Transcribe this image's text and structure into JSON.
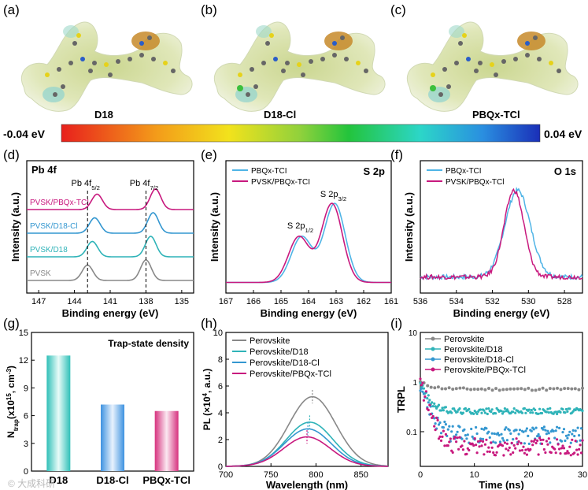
{
  "panel_letters": [
    "(a)",
    "(b)",
    "(c)",
    "(d)",
    "(e)",
    "(f)",
    "(g)",
    "(h)",
    "(i)"
  ],
  "molecules": [
    "D18",
    "D18-Cl",
    "PBQx-TCl"
  ],
  "colorbar": {
    "min_label": "-0.04 eV",
    "max_label": "0.04 eV",
    "colors": [
      "#e8201c",
      "#f39c1a",
      "#f2e21c",
      "#8fd13c",
      "#23c43c",
      "#2cd6c8",
      "#2a8fe0",
      "#1a2fb8"
    ]
  },
  "watermark": "© 大成科研",
  "colors": {
    "magenta": "#c8197e",
    "blue": "#3497d0",
    "teal": "#2fb3b8",
    "gray": "#888888",
    "lightblue": "#4fb4e6"
  },
  "chart_data": [
    {
      "panel": "d",
      "type": "line",
      "title": "Pb 4f",
      "xlabel": "Binding energy (eV)",
      "ylabel": "Intensity (a.u.)",
      "xlim": [
        148,
        134
      ],
      "xticks": [
        147,
        144,
        141,
        138,
        135
      ],
      "peak_labels": [
        {
          "text": "Pb 4f",
          "sub": "5/2",
          "x": 142.8
        },
        {
          "text": "Pb 4f",
          "sub": "7/2",
          "x": 137.9
        }
      ],
      "dashed_lines": [
        142.9,
        138.0
      ],
      "series": [
        {
          "name": "PVSK/PBQx-TCI",
          "peaks": [
            142.1,
            137.2
          ]
        },
        {
          "name": "PVSK/D18-Cl",
          "peaks": [
            142.3,
            137.4
          ]
        },
        {
          "name": "PVSK/D18",
          "peaks": [
            142.5,
            137.6
          ]
        },
        {
          "name": "PVSK",
          "peaks": [
            142.9,
            138.0
          ]
        }
      ]
    },
    {
      "panel": "e",
      "type": "line",
      "title": "S 2p",
      "xlabel": "Binding energy (eV)",
      "ylabel": "Intensity (a.u.)",
      "xlim": [
        167,
        161
      ],
      "xticks": [
        167,
        166,
        165,
        164,
        163,
        162,
        161
      ],
      "peak_labels": [
        {
          "text": "S 2p",
          "sub": "1/2",
          "x": 164.3
        },
        {
          "text": "S 2p",
          "sub": "3/2",
          "x": 163.1
        }
      ],
      "series": [
        {
          "name": "PBQx-TCI",
          "peaks": [
            164.25,
            163.05
          ]
        },
        {
          "name": "PVSK/PBQx-TCI",
          "peaks": [
            164.35,
            163.15
          ]
        }
      ]
    },
    {
      "panel": "f",
      "type": "line",
      "title": "O 1s",
      "xlabel": "Binding energy (eV)",
      "ylabel": "Intensity (a.u.)",
      "xlim": [
        536,
        527
      ],
      "xticks": [
        536,
        534,
        532,
        530,
        528
      ],
      "series": [
        {
          "name": "PBQx-TCI",
          "center": 530.6
        },
        {
          "name": "PVSK/PBQx-TCl",
          "center": 530.8
        }
      ]
    },
    {
      "panel": "g",
      "type": "bar",
      "title": "Trap-state density",
      "ylabel": "N",
      "ylabel_sub": "trap",
      "ylabel_rest": "(x10",
      "ylabel_sup": "15",
      "ylabel_unit": ", cm",
      "ylabel_unit_sup": "-3",
      "ylabel_close": ")",
      "categories": [
        "D18",
        "D18-Cl",
        "PBQx-TCl"
      ],
      "values": [
        12.5,
        7.2,
        6.5
      ],
      "ylim": [
        0,
        15
      ],
      "yticks": [
        0,
        3,
        6,
        9,
        12,
        15
      ]
    },
    {
      "panel": "h",
      "type": "line",
      "xlabel": "Wavelength (nm)",
      "ylabel": "PL (×10",
      "ylabel_sup": "4",
      "ylabel_rest": ", a.u.)",
      "xlim": [
        700,
        880
      ],
      "xticks": [
        700,
        750,
        800,
        850
      ],
      "ylim": [
        0,
        10
      ],
      "yticks": [
        0,
        2,
        4,
        6,
        8,
        10
      ],
      "series": [
        {
          "name": "Perovskite",
          "peak": 5.2,
          "center": 796
        },
        {
          "name": "Perovskite/D18",
          "peak": 3.3,
          "center": 793
        },
        {
          "name": "Perovskite/D18-Cl",
          "peak": 2.8,
          "center": 791
        },
        {
          "name": "Perovskite/PBQx-TCl",
          "peak": 2.2,
          "center": 790
        }
      ]
    },
    {
      "panel": "i",
      "type": "scatter",
      "xlabel": "Time (ns)",
      "ylabel": "TRPL",
      "xlim": [
        0,
        30
      ],
      "xticks": [
        0,
        10,
        20,
        30
      ],
      "ylim": [
        0.02,
        10
      ],
      "yscale": "log",
      "yticks_labels": [
        "10",
        "1",
        "0.1"
      ],
      "series": [
        {
          "name": "Perovskite",
          "plateau": 0.72
        },
        {
          "name": "Perovskite/D18",
          "plateau": 0.26
        },
        {
          "name": "Perovskite/D18-Cl",
          "plateau": 0.085
        },
        {
          "name": "Perovskite/PBQx-TCl",
          "plateau": 0.05
        }
      ]
    }
  ]
}
